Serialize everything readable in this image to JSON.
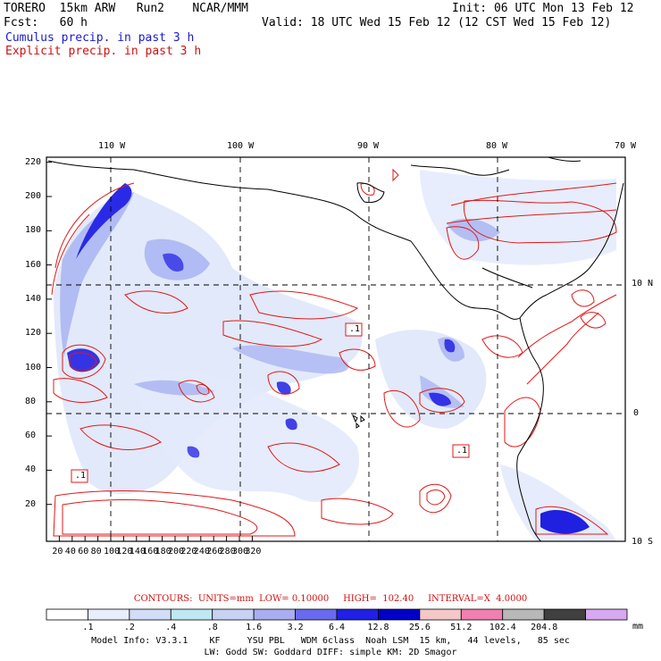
{
  "header": {
    "model": "TORERO  15km ARW   Run2    NCAR/MMM",
    "init": "Init: 06 UTC Mon 13 Feb 12",
    "fcst": "Fcst:   60 h",
    "valid": "Valid: 18 UTC Wed 15 Feb 12 (12 CST Wed 15 Feb 12)",
    "legend_cumulus": "Cumulus precip. in past 3 h",
    "legend_explicit": "Explicit precip. in past 3 h"
  },
  "map": {
    "lon_labels": [
      "110 W",
      "100 W",
      "90 W",
      "80 W",
      "70 W"
    ],
    "lat_labels": [
      "10 N",
      "0",
      "10 S"
    ],
    "x_ticks": [
      "20",
      "40",
      "60",
      "80",
      "100",
      "120",
      "140",
      "160",
      "180",
      "200",
      "220",
      "240",
      "260",
      "280",
      "300",
      "320"
    ],
    "y_ticks": [
      "20",
      "40",
      "60",
      "80",
      "100",
      "120",
      "140",
      "160",
      "180",
      "200",
      "220"
    ],
    "box_labels": [
      ".1",
      ".1",
      ".1"
    ]
  },
  "colorbar": {
    "contours_line": "CONTOURS:  UNITS=mm  LOW= 0.10000     HIGH=  102.40     INTERVAL=X  4.0000",
    "labels": [
      ".1",
      ".2",
      ".4",
      ".8",
      "1.6",
      "3.2",
      "6.4",
      "12.8",
      "25.6",
      "51.2",
      "102.4",
      "204.8"
    ],
    "unit": "mm",
    "colors": [
      "#ffffff",
      "#e8eefc",
      "#d2ddf8",
      "#bfe8f2",
      "#c7d2f5",
      "#a8aef0",
      "#6a6af0",
      "#2020e6",
      "#0000c8",
      "#f5c8c8",
      "#f080b0",
      "#b8b8b8",
      "#404040",
      "#d8a8f0"
    ]
  },
  "footer": {
    "line1": "Model Info: V3.3.1    KF     YSU PBL   WDM 6class  Noah LSM  15 km,   44 levels,   85 sec",
    "line2": "LW: Godd SW: Goddard DIFF: simple KM: 2D Smagor"
  }
}
